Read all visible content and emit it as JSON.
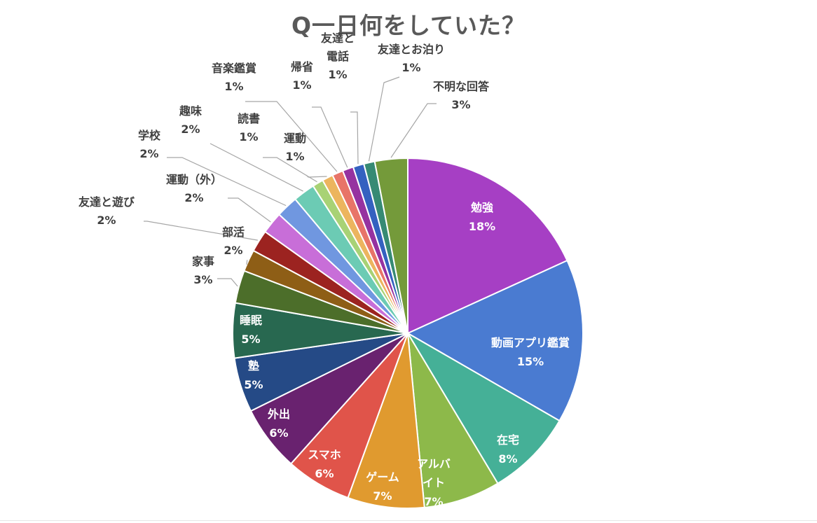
{
  "chart_data": {
    "type": "pie",
    "title": "Q一日何をしていた？",
    "slices": [
      {
        "label": "勉強",
        "value": 18,
        "display": "18%",
        "color": "#A63FC4",
        "label_color": "#ffffff"
      },
      {
        "label": "動画アプリ鑑賞",
        "value": 15,
        "display": "15%",
        "color": "#4A7BD1",
        "label_color": "#ffffff"
      },
      {
        "label": "在宅",
        "value": 8,
        "display": "8%",
        "color": "#45B097",
        "label_color": "#ffffff"
      },
      {
        "label": "アルバイト",
        "lines": [
          "アルバ",
          "イト"
        ],
        "value": 7,
        "display": "7%",
        "color": "#8DB94A",
        "label_color": "#ffffff"
      },
      {
        "label": "ゲーム",
        "value": 7,
        "display": "7%",
        "color": "#E09A2F",
        "label_color": "#ffffff"
      },
      {
        "label": "スマホ",
        "value": 6,
        "display": "6%",
        "color": "#E0544A",
        "label_color": "#ffffff"
      },
      {
        "label": "外出",
        "value": 6,
        "display": "6%",
        "color": "#69226F",
        "label_color": "#ffffff"
      },
      {
        "label": "塾",
        "value": 5,
        "display": "5%",
        "color": "#254A86",
        "label_color": "#ffffff"
      },
      {
        "label": "睡眠",
        "value": 5,
        "display": "5%",
        "color": "#286850",
        "label_color": "#ffffff"
      },
      {
        "label": "家事",
        "value": 3,
        "display": "3%",
        "color": "#4C6E2A",
        "label_color": "#404040"
      },
      {
        "label": "部活",
        "value": 2,
        "display": "2%",
        "color": "#8E5E16",
        "label_color": "#404040"
      },
      {
        "label": "友達と遊び",
        "value": 2,
        "display": "2%",
        "color": "#9C2320",
        "label_color": "#404040"
      },
      {
        "label": "運動（外）",
        "value": 2,
        "display": "2%",
        "color": "#C86ED8",
        "label_color": "#404040"
      },
      {
        "label": "学校",
        "value": 2,
        "display": "2%",
        "color": "#7097E0",
        "label_color": "#404040"
      },
      {
        "label": "趣味",
        "value": 2,
        "display": "2%",
        "color": "#6CCBB4",
        "label_color": "#404040"
      },
      {
        "label": "読書",
        "value": 1,
        "display": "1%",
        "color": "#A8D275",
        "label_color": "#404040"
      },
      {
        "label": "運動",
        "value": 1,
        "display": "1%",
        "color": "#ECB55E",
        "label_color": "#404040"
      },
      {
        "label": "音楽鑑賞",
        "value": 1,
        "display": "1%",
        "color": "#E87468",
        "label_color": "#404040"
      },
      {
        "label": "帰省",
        "value": 1,
        "display": "1%",
        "color": "#9632A0",
        "label_color": "#404040"
      },
      {
        "label": "友達と電話",
        "lines": [
          "友達と",
          "電話"
        ],
        "value": 1,
        "display": "1%",
        "color": "#3461C0",
        "label_color": "#404040"
      },
      {
        "label": "友達とお泊り",
        "value": 1,
        "display": "1%",
        "color": "#368A74",
        "label_color": "#404040"
      },
      {
        "label": "不明な回答",
        "value": 3,
        "display": "3%",
        "color": "#749A3A",
        "label_color": "#404040"
      }
    ]
  }
}
